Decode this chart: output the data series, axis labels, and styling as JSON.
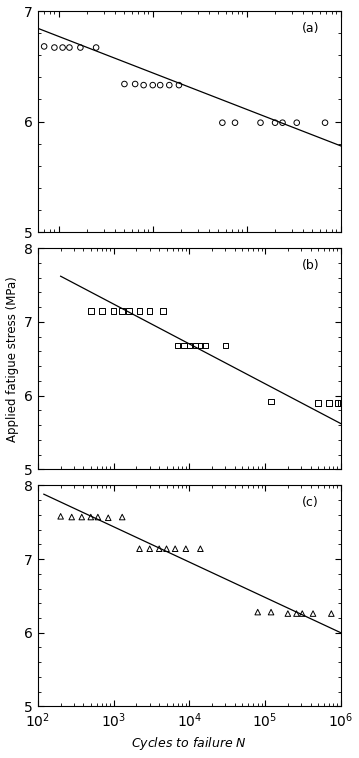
{
  "panel_a": {
    "label": "(a)",
    "xlim": [
      600,
      1000000
    ],
    "ylim": [
      5,
      7
    ],
    "yticks": [
      5,
      6,
      7
    ],
    "data_circles": [
      [
        700,
        6.68
      ],
      [
        900,
        6.67
      ],
      [
        1100,
        6.67
      ],
      [
        1300,
        6.67
      ],
      [
        1700,
        6.67
      ],
      [
        2500,
        6.67
      ],
      [
        5000,
        6.34
      ],
      [
        6500,
        6.34
      ],
      [
        8000,
        6.33
      ],
      [
        10000,
        6.33
      ],
      [
        12000,
        6.33
      ],
      [
        15000,
        6.33
      ],
      [
        19000,
        6.33
      ],
      [
        55000,
        5.99
      ],
      [
        75000,
        5.99
      ],
      [
        140000,
        5.99
      ],
      [
        200000,
        5.99
      ],
      [
        240000,
        5.99
      ],
      [
        340000,
        5.99
      ],
      [
        680000,
        5.99
      ]
    ],
    "line_x": [
      500,
      1000000
    ],
    "line_y": [
      6.87,
      5.78
    ]
  },
  "panel_b": {
    "label": "(b)",
    "xlim": [
      100,
      1000000
    ],
    "ylim": [
      5,
      8
    ],
    "yticks": [
      5,
      6,
      7,
      8
    ],
    "data_squares": [
      [
        500,
        7.15
      ],
      [
        700,
        7.15
      ],
      [
        1000,
        7.15
      ],
      [
        1300,
        7.15
      ],
      [
        1600,
        7.15
      ],
      [
        2200,
        7.15
      ],
      [
        3000,
        7.15
      ],
      [
        4500,
        7.15
      ],
      [
        7000,
        6.68
      ],
      [
        8500,
        6.68
      ],
      [
        10000,
        6.68
      ],
      [
        12000,
        6.68
      ],
      [
        14000,
        6.68
      ],
      [
        16000,
        6.68
      ],
      [
        30000,
        6.68
      ],
      [
        120000,
        5.92
      ],
      [
        500000,
        5.9
      ],
      [
        700000,
        5.9
      ],
      [
        900000,
        5.9
      ],
      [
        1000000,
        5.9
      ]
    ],
    "line_x": [
      200,
      1000000
    ],
    "line_y": [
      7.62,
      5.62
    ]
  },
  "panel_c": {
    "label": "(c)",
    "xlim": [
      100,
      1000000
    ],
    "ylim": [
      5,
      8
    ],
    "yticks": [
      5,
      6,
      7,
      8
    ],
    "data_triangles": [
      [
        200,
        7.58
      ],
      [
        280,
        7.57
      ],
      [
        380,
        7.57
      ],
      [
        500,
        7.57
      ],
      [
        620,
        7.57
      ],
      [
        850,
        7.56
      ],
      [
        1300,
        7.57
      ],
      [
        2200,
        7.14
      ],
      [
        3000,
        7.14
      ],
      [
        4000,
        7.14
      ],
      [
        5000,
        7.14
      ],
      [
        6500,
        7.14
      ],
      [
        9000,
        7.14
      ],
      [
        14000,
        7.14
      ],
      [
        80000,
        6.28
      ],
      [
        120000,
        6.28
      ],
      [
        200000,
        6.26
      ],
      [
        260000,
        6.26
      ],
      [
        310000,
        6.26
      ],
      [
        430000,
        6.26
      ],
      [
        750000,
        6.26
      ]
    ],
    "line_x": [
      120,
      1000000
    ],
    "line_y": [
      7.88,
      6.0
    ]
  },
  "xlabel": "Cycles to failure $N$",
  "ylabel": "Applied fatigue stress (MPa)",
  "figure_bg": "#ffffff",
  "line_color": "#000000",
  "marker_color": "#000000",
  "marker_size": 16,
  "line_width": 0.9
}
